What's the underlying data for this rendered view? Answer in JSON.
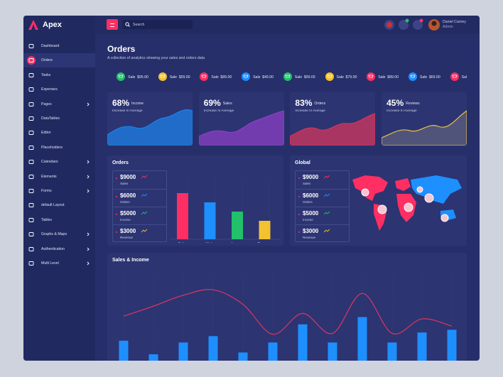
{
  "brand": "Apex",
  "header": {
    "search_placeholder": "Search",
    "user_name": "Daniel Carney",
    "user_role": "Admin"
  },
  "sidebar": [
    {
      "label": "Dashboard",
      "arrow": false
    },
    {
      "label": "Orders",
      "arrow": false,
      "active": true
    },
    {
      "label": "Tasks",
      "arrow": false
    },
    {
      "label": "Expenses",
      "arrow": false
    },
    {
      "label": "Pages",
      "arrow": true
    },
    {
      "label": "DataTables",
      "arrow": false
    },
    {
      "label": "Editor",
      "arrow": false
    },
    {
      "label": "Placeholders",
      "arrow": false
    },
    {
      "label": "Calendars",
      "arrow": true
    },
    {
      "label": "Elements",
      "arrow": true
    },
    {
      "label": "Forms",
      "arrow": true
    },
    {
      "label": "default Layout",
      "arrow": false
    },
    {
      "label": "Tables",
      "arrow": false
    },
    {
      "label": "Graphs & Maps",
      "arrow": true
    },
    {
      "label": "Authentication",
      "arrow": true
    },
    {
      "label": "Multi Level",
      "arrow": true
    }
  ],
  "page": {
    "title": "Orders",
    "subtitle": "A collection of analytics showing your sales and orders data"
  },
  "ticker": [
    {
      "label": "Sale",
      "amount": "$95.00",
      "color": "#22c06a"
    },
    {
      "label": "Sale",
      "amount": "$59.00",
      "color": "#f2c230"
    },
    {
      "label": "Sale",
      "amount": "$89.00",
      "color": "#ff2e63"
    },
    {
      "label": "Sale",
      "amount": "$49.00",
      "color": "#1e8fff"
    },
    {
      "label": "Sale",
      "amount": "$99.00",
      "color": "#22c06a"
    },
    {
      "label": "Sale",
      "amount": "$79.00",
      "color": "#f2c230"
    },
    {
      "label": "Sale",
      "amount": "$89.00",
      "color": "#ff2e63"
    },
    {
      "label": "Sale",
      "amount": "$69.00",
      "color": "#1e8fff"
    },
    {
      "label": "Sale",
      "amount": "$",
      "color": "#ff2e63"
    }
  ],
  "stats": [
    {
      "value": "68%",
      "label": "Income",
      "note": "Increase In Average",
      "color": "#1e7fe6"
    },
    {
      "value": "69%",
      "label": "Sales",
      "note": "Increase In Average",
      "color": "#8a3fc4"
    },
    {
      "value": "83%",
      "label": "Orders",
      "note": "Increase In Average",
      "color": "#d2365e"
    },
    {
      "value": "45%",
      "label": "Reviews",
      "note": "Increase In Average",
      "color": "#e8c04a"
    }
  ],
  "orders": {
    "title": "Orders",
    "list": [
      {
        "amount": "$9000",
        "label": "Sales",
        "color": "#ff2e63"
      },
      {
        "amount": "$6000",
        "label": "Orders",
        "color": "#1e8fff"
      },
      {
        "amount": "$5000",
        "label": "Income",
        "color": "#22c06a"
      },
      {
        "amount": "$3000",
        "label": "Revenue",
        "color": "#f2c230"
      }
    ],
    "chart": {
      "type": "bar",
      "categories": [
        "Sales",
        "Visits",
        "Income",
        "Revenue"
      ],
      "values": [
        65,
        52,
        39,
        26
      ],
      "colors": [
        "#ff2e63",
        "#1e8fff",
        "#22c06a",
        "#f2c230"
      ],
      "ylim": [
        0,
        80
      ]
    }
  },
  "global": {
    "title": "Global",
    "list": [
      {
        "amount": "$9000",
        "label": "Sales",
        "color": "#ff2e63"
      },
      {
        "amount": "$6000",
        "label": "Orders",
        "color": "#1e8fff"
      },
      {
        "amount": "$5000",
        "label": "Income",
        "color": "#22c06a"
      },
      {
        "amount": "$3000",
        "label": "Revenue",
        "color": "#f2c230"
      }
    ]
  },
  "sales_income": {
    "title": "Sales & Income",
    "chart": {
      "type": "bar-line",
      "ylim": [
        0,
        100
      ],
      "series": [
        {
          "type": "bar",
          "color": "#1e8fff",
          "values": [
            22,
            7,
            20,
            27,
            9,
            20,
            40,
            20,
            48,
            20,
            31,
            34
          ]
        },
        {
          "type": "line",
          "color": "#d2365e",
          "values": [
            49,
            60,
            72,
            78,
            62,
            29,
            52,
            30,
            74,
            30,
            46,
            38
          ]
        }
      ]
    }
  }
}
